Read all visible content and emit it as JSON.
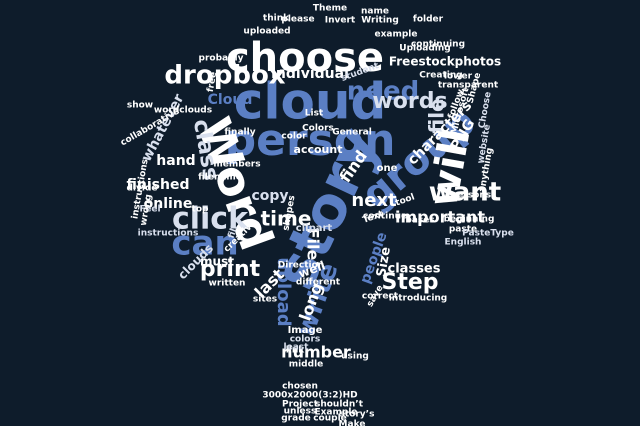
{
  "canvas": {
    "background": "#0e1c2b",
    "palette": [
      "#ffffff",
      "#5b7fc4",
      "#9ab0d8",
      "#d9e0ee"
    ]
  },
  "shape": "tree",
  "words": [
    "choose",
    "cloud",
    "person",
    "story",
    "Word",
    "group",
    "will",
    "want",
    "dropbox",
    "need",
    "words",
    "file",
    "click",
    "can",
    "class",
    "whatever",
    "hand",
    "finished",
    "online",
    "print",
    "time",
    "File",
    "next",
    "important",
    "characters",
    "PNG",
    "Step",
    "classes",
    "write",
    "upload",
    "long",
    "must",
    "clouds",
    "last",
    "number",
    "individual",
    "copy",
    "find",
    "account",
    "Freestockphotos",
    "website",
    "instructions",
    "example",
    "uploaded",
    "Cloud",
    "wordclouds",
    "people",
    "Size",
    "well",
    "using",
    "middle",
    "correct",
    "introducing",
    "English",
    "paste",
    "Direction",
    "clipart",
    "shapes",
    "colors",
    "Image",
    "link",
    "least",
    "chosen",
    "3000x2000(3:2)HD",
    "Project",
    "shouldn’t",
    "unless",
    "Example",
    "grade",
    "couple",
    "Make",
    "story’s",
    "written",
    "different",
    "members",
    "filename",
    "free",
    "color",
    "List",
    "General",
    "beginning",
    "transparent",
    "lower",
    "continue",
    "probably",
    "Invert",
    "Writing",
    "folder",
    "name",
    "please",
    "think",
    "Theme",
    "Colors",
    "Feel",
    "finally",
    "divide",
    "instructions",
    "wrong",
    "creative",
    "Choose",
    "anything",
    "Microsoft",
    "persons",
    "bases",
    "Creating",
    "collaborative",
    "Shape",
    "student",
    "Uploading",
    "continuing",
    "follow",
    "top",
    "sites",
    "one",
    "save",
    "PasteType",
    "Text",
    "tool",
    "fill",
    "show"
  ]
}
